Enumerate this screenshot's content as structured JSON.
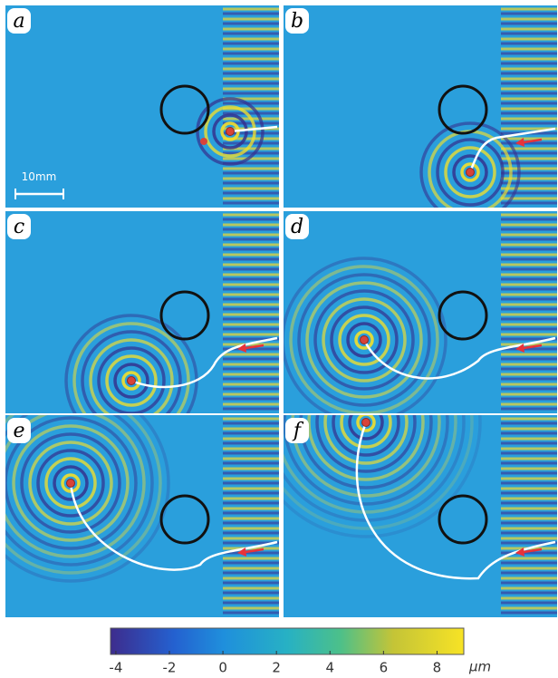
{
  "panels": [
    {
      "label": "a"
    },
    {
      "label": "b"
    },
    {
      "label": "c"
    },
    {
      "label": "d"
    },
    {
      "label": "e"
    },
    {
      "label": "f"
    }
  ],
  "scale_bar": "10mm",
  "colorbar": {
    "range": [
      -4.2,
      9
    ],
    "ticks": [
      -4,
      -2,
      0,
      2,
      4,
      6,
      8
    ],
    "unit": "μm"
  }
}
